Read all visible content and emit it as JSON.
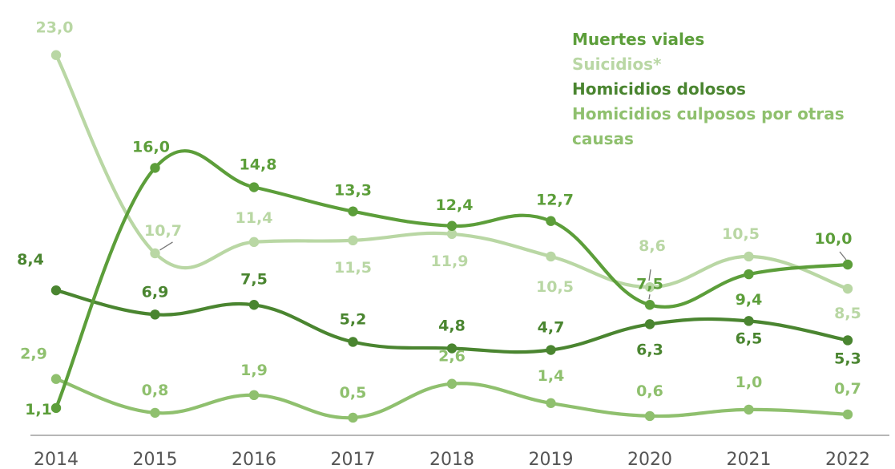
{
  "chart_data": {
    "type": "line",
    "x": [
      "2014",
      "2015",
      "2016",
      "2017",
      "2018",
      "2019",
      "2020",
      "2021",
      "2022"
    ],
    "ylim": [
      0,
      24
    ],
    "grid": false,
    "legend_position": "top-right",
    "series": [
      {
        "name": "Muertes viales",
        "color": "#5c9e3a",
        "values": [
          1.1,
          16.0,
          14.8,
          13.3,
          12.4,
          12.7,
          7.5,
          9.4,
          10.0
        ],
        "labels": [
          "1,1",
          "16,0",
          "14,8",
          "13,3",
          "12,4",
          "12,7",
          "7,5",
          "9,4",
          "10,0"
        ]
      },
      {
        "name": "Suicidios*",
        "color": "#b9d7a4",
        "values": [
          23.0,
          10.7,
          11.4,
          11.5,
          11.9,
          10.5,
          8.6,
          10.5,
          8.5
        ],
        "labels": [
          "23,0",
          "10,7",
          "11,4",
          "11,5",
          "11,9",
          "10,5",
          "8,6",
          "10,5",
          "8,5"
        ]
      },
      {
        "name": "Homicidios dolosos",
        "color": "#4a8530",
        "values": [
          8.4,
          6.9,
          7.5,
          5.2,
          4.8,
          4.7,
          6.3,
          6.5,
          5.3
        ],
        "labels": [
          "8,4",
          "6,9",
          "7,5",
          "5,2",
          "4,8",
          "4,7",
          "6,3",
          "6,5",
          "5,3"
        ]
      },
      {
        "name": "Homicidios culposos por otras causas",
        "color": "#8fc06e",
        "values": [
          2.9,
          0.8,
          1.9,
          0.5,
          2.6,
          1.4,
          0.6,
          1.0,
          0.7
        ],
        "labels": [
          "2,9",
          "0,8",
          "1,9",
          "0,5",
          "2,6",
          "1,4",
          "0,6",
          "1,0",
          "0,7"
        ]
      }
    ]
  }
}
